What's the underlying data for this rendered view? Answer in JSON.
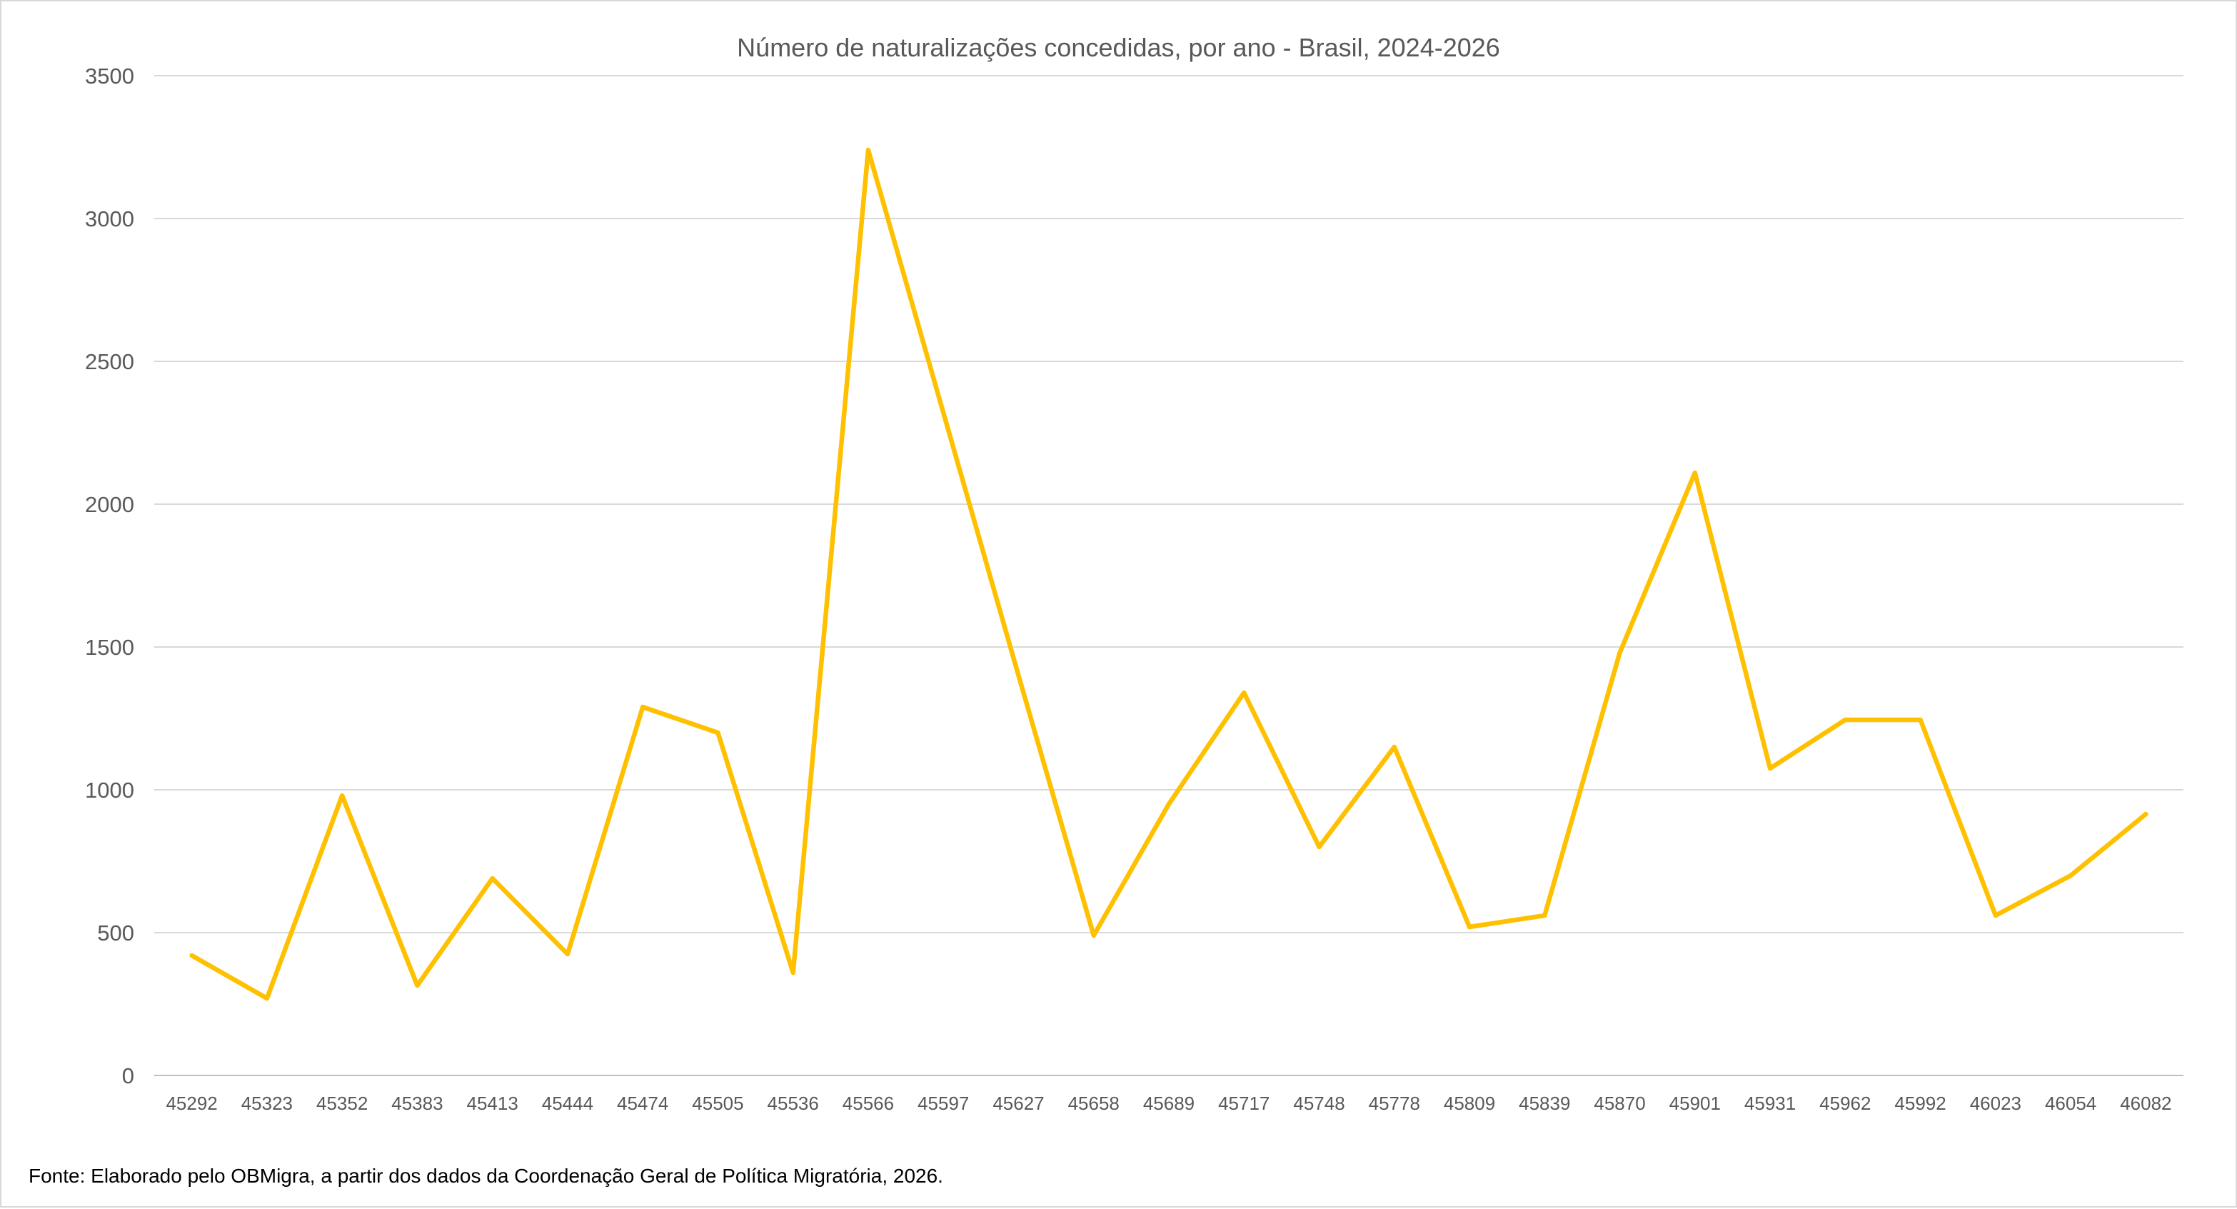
{
  "chart_data": {
    "type": "line",
    "title": "Número de naturalizações concedidas, por ano - Brasil, 2024-2026",
    "source": "Fonte: Elaborado pelo OBMigra, a partir dos dados da Coordenação Geral de Política Migratória, 2026.",
    "categories": [
      "45292",
      "45323",
      "45352",
      "45383",
      "45413",
      "45444",
      "45474",
      "45505",
      "45536",
      "45566",
      "45597",
      "45627",
      "45658",
      "45689",
      "45717",
      "45748",
      "45778",
      "45809",
      "45839",
      "45870",
      "45901",
      "45931",
      "45962",
      "45992",
      "46023",
      "46054",
      "46082"
    ],
    "values": [
      420,
      270,
      980,
      315,
      690,
      425,
      1290,
      1200,
      360,
      3240,
      2320,
      1400,
      490,
      950,
      1340,
      800,
      1150,
      520,
      560,
      1480,
      2110,
      1075,
      1245,
      1245,
      560,
      700,
      915
    ],
    "xlabel": "",
    "ylabel": "",
    "ylim": [
      0,
      3500
    ],
    "yticks": [
      0,
      500,
      1000,
      1500,
      2000,
      2500,
      3000,
      3500
    ],
    "grid": "horizontal",
    "legend": "none",
    "line_color": "#FFC000",
    "gridline_color": "#D9D9D9",
    "axis_color": "#BFBFBF",
    "tick_label_color": "#595959",
    "title_color": "#595959"
  }
}
